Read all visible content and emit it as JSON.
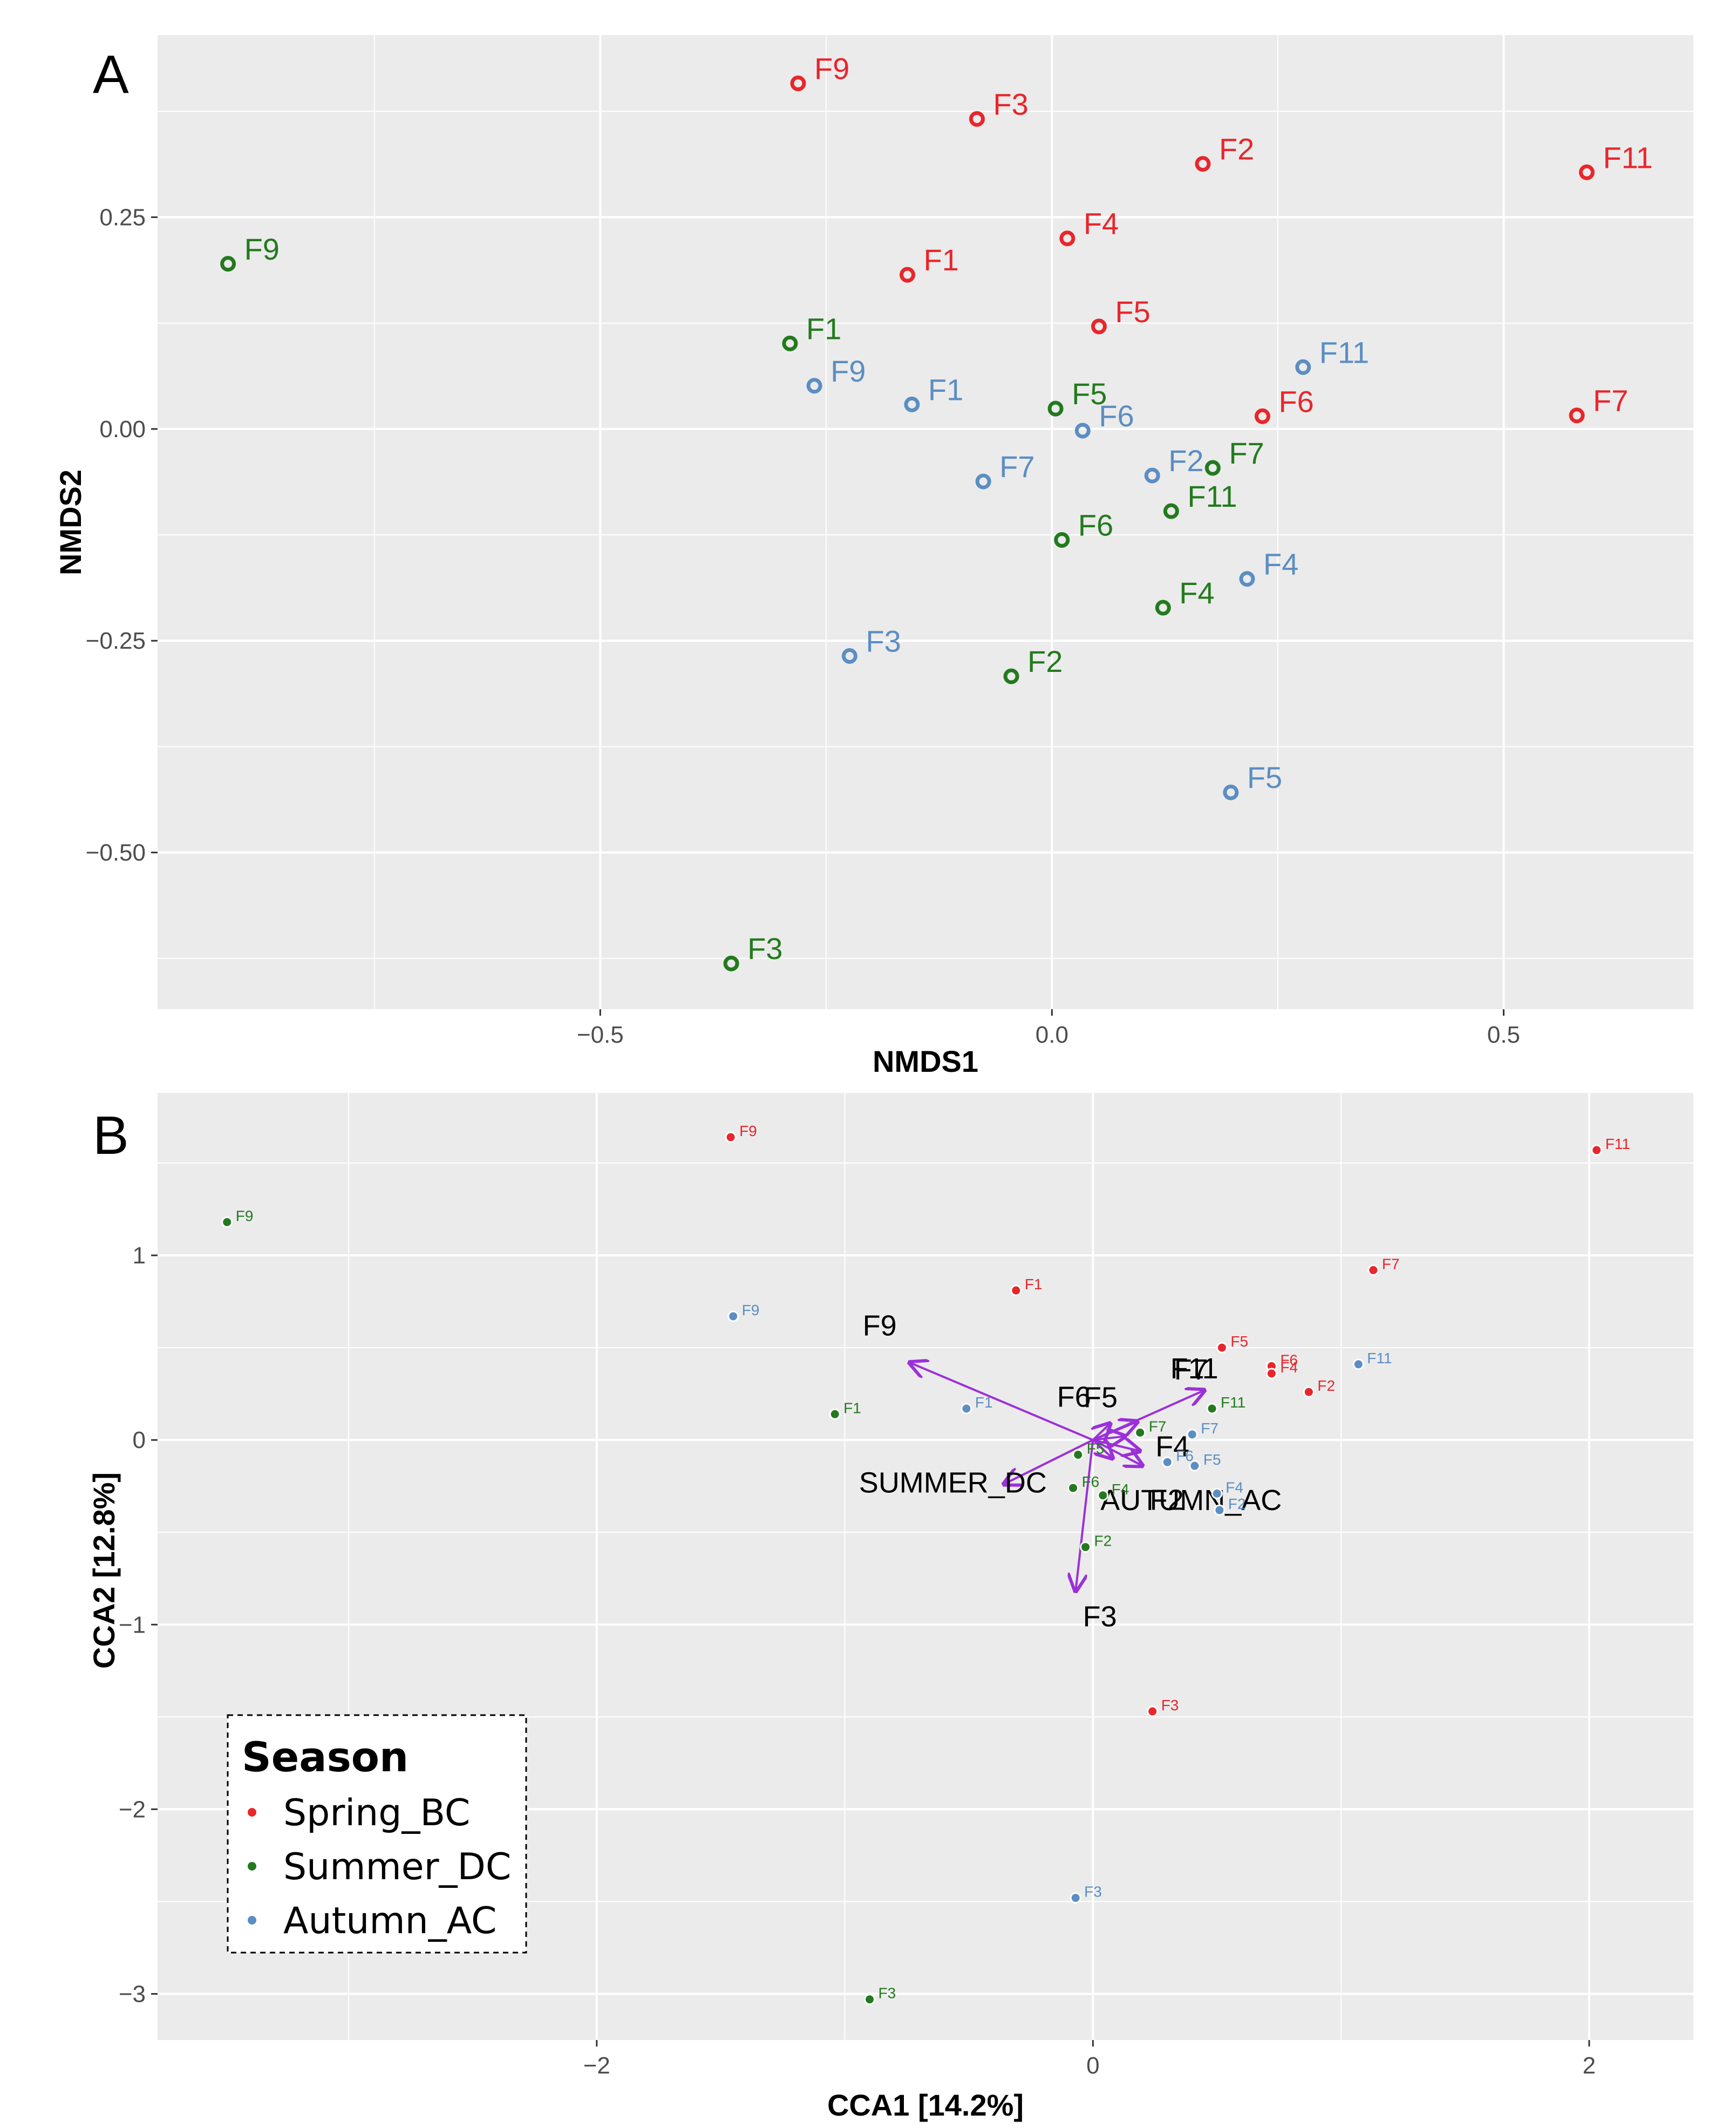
{
  "colors": {
    "Spring_BC": "#e8262b",
    "Summer_DC": "#237a1e",
    "Autumn_AC": "#5b8ec3",
    "arrow": "#9b30d9",
    "panel_bg": "#ebebeb",
    "grid": "#ffffff"
  },
  "chart_data": [
    {
      "type": "scatter",
      "panel": "A",
      "title": "",
      "xlabel": "NMDS1",
      "ylabel": "NMDS2",
      "xlim": [
        -0.99,
        0.71
      ],
      "ylim": [
        -0.685,
        0.465
      ],
      "xticks": [
        -0.5,
        0.0,
        0.5
      ],
      "xtick_labels": [
        "−0.5",
        "0.0",
        "0.5"
      ],
      "yticks": [
        -0.5,
        -0.25,
        0.0,
        0.25
      ],
      "ytick_labels": [
        "−0.50",
        "−0.25",
        "0.00",
        "0.25"
      ],
      "series": [
        {
          "name": "Spring_BC",
          "points": [
            {
              "label": "F9",
              "x": -0.281,
              "y": 0.408
            },
            {
              "label": "F3",
              "x": -0.083,
              "y": 0.366
            },
            {
              "label": "F2",
              "x": 0.167,
              "y": 0.313
            },
            {
              "label": "F11",
              "x": 0.592,
              "y": 0.303
            },
            {
              "label": "F4",
              "x": 0.017,
              "y": 0.225
            },
            {
              "label": "F1",
              "x": -0.16,
              "y": 0.182
            },
            {
              "label": "F5",
              "x": 0.052,
              "y": 0.121
            },
            {
              "label": "F6",
              "x": 0.233,
              "y": 0.015
            },
            {
              "label": "F7",
              "x": 0.581,
              "y": 0.016
            }
          ]
        },
        {
          "name": "Summer_DC",
          "points": [
            {
              "label": "F9",
              "x": -0.912,
              "y": 0.195
            },
            {
              "label": "F1",
              "x": -0.29,
              "y": 0.101
            },
            {
              "label": "F5",
              "x": 0.004,
              "y": 0.024
            },
            {
              "label": "F7",
              "x": 0.178,
              "y": -0.046
            },
            {
              "label": "F11",
              "x": 0.132,
              "y": -0.097
            },
            {
              "label": "F6",
              "x": 0.011,
              "y": -0.131
            },
            {
              "label": "F4",
              "x": 0.123,
              "y": -0.211
            },
            {
              "label": "F2",
              "x": -0.045,
              "y": -0.292
            },
            {
              "label": "F3",
              "x": -0.355,
              "y": -0.631
            }
          ]
        },
        {
          "name": "Autumn_AC",
          "points": [
            {
              "label": "F11",
              "x": 0.278,
              "y": 0.073
            },
            {
              "label": "F9",
              "x": -0.263,
              "y": 0.051
            },
            {
              "label": "F1",
              "x": -0.155,
              "y": 0.029
            },
            {
              "label": "F6",
              "x": 0.034,
              "y": -0.002
            },
            {
              "label": "F2",
              "x": 0.111,
              "y": -0.055
            },
            {
              "label": "F7",
              "x": -0.076,
              "y": -0.062
            },
            {
              "label": "F4",
              "x": 0.216,
              "y": -0.177
            },
            {
              "label": "F3",
              "x": -0.224,
              "y": -0.268
            },
            {
              "label": "F5",
              "x": 0.198,
              "y": -0.429
            }
          ]
        }
      ]
    },
    {
      "type": "scatter",
      "panel": "B",
      "title": "",
      "xlabel": "CCA1  [14.2%]",
      "ylabel": "CCA2  [12.8%]",
      "xlim": [
        -3.77,
        2.42
      ],
      "ylim": [
        -3.25,
        1.88
      ],
      "xticks": [
        -2,
        0,
        2
      ],
      "xtick_labels": [
        "−2",
        "0",
        "2"
      ],
      "yticks": [
        -3,
        -2,
        -1,
        0,
        1
      ],
      "ytick_labels": [
        "−3",
        "−2",
        "−1",
        "0",
        "1"
      ],
      "series": [
        {
          "name": "Spring_BC",
          "points": [
            {
              "label": "F9",
              "x": -1.46,
              "y": 1.64
            },
            {
              "label": "F11",
              "x": 2.03,
              "y": 1.57
            },
            {
              "label": "F7",
              "x": 1.13,
              "y": 0.92
            },
            {
              "label": "F1",
              "x": -0.31,
              "y": 0.81
            },
            {
              "label": "F5",
              "x": 0.52,
              "y": 0.5
            },
            {
              "label": "F6",
              "x": 0.72,
              "y": 0.4
            },
            {
              "label": "F4",
              "x": 0.72,
              "y": 0.36
            },
            {
              "label": "F2",
              "x": 0.87,
              "y": 0.26
            },
            {
              "label": "F3",
              "x": 0.24,
              "y": -1.47
            }
          ]
        },
        {
          "name": "Summer_DC",
          "points": [
            {
              "label": "F9",
              "x": -3.49,
              "y": 1.18
            },
            {
              "label": "F1",
              "x": -1.04,
              "y": 0.14
            },
            {
              "label": "F11",
              "x": 0.48,
              "y": 0.17
            },
            {
              "label": "F7",
              "x": 0.19,
              "y": 0.04
            },
            {
              "label": "F5",
              "x": -0.06,
              "y": -0.08
            },
            {
              "label": "F6",
              "x": -0.08,
              "y": -0.26
            },
            {
              "label": "F4",
              "x": 0.04,
              "y": -0.3
            },
            {
              "label": "F2",
              "x": -0.03,
              "y": -0.58
            },
            {
              "label": "F3",
              "x": -0.9,
              "y": -3.03
            }
          ]
        },
        {
          "name": "Autumn_AC",
          "points": [
            {
              "label": "F9",
              "x": -1.45,
              "y": 0.67
            },
            {
              "label": "F11",
              "x": 1.07,
              "y": 0.41
            },
            {
              "label": "F1",
              "x": -0.51,
              "y": 0.17
            },
            {
              "label": "F7",
              "x": 0.4,
              "y": 0.03
            },
            {
              "label": "F6",
              "x": 0.3,
              "y": -0.12
            },
            {
              "label": "F5",
              "x": 0.41,
              "y": -0.14
            },
            {
              "label": "F4",
              "x": 0.5,
              "y": -0.29
            },
            {
              "label": "F2",
              "x": 0.51,
              "y": -0.38
            },
            {
              "label": "F3",
              "x": -0.07,
              "y": -2.48
            }
          ]
        }
      ],
      "vectors": [
        {
          "label": "F9",
          "x": -0.74,
          "y": 0.42
        },
        {
          "label": "F6",
          "x": 0.13,
          "y": 0.02
        },
        {
          "label": "F11",
          "x": 0.18,
          "y": 0.1
        },
        {
          "label": "F7",
          "x": 0.45,
          "y": 0.27
        },
        {
          "label": "F5",
          "x": 0.07,
          "y": 0.09
        },
        {
          "label": "F4",
          "x": 0.19,
          "y": -0.06
        },
        {
          "label": "F2",
          "x": 0.08,
          "y": -0.1
        },
        {
          "label": "SUMMER_DC",
          "x": -0.36,
          "y": -0.24
        },
        {
          "label": "AUTUMN_AC",
          "x": 0.2,
          "y": -0.14
        },
        {
          "label": "F3",
          "x": -0.07,
          "y": -0.82
        }
      ],
      "legend": {
        "title": "Season",
        "position": "bottom-left",
        "entries": [
          "Spring_BC",
          "Summer_DC",
          "Autumn_AC"
        ]
      }
    }
  ]
}
